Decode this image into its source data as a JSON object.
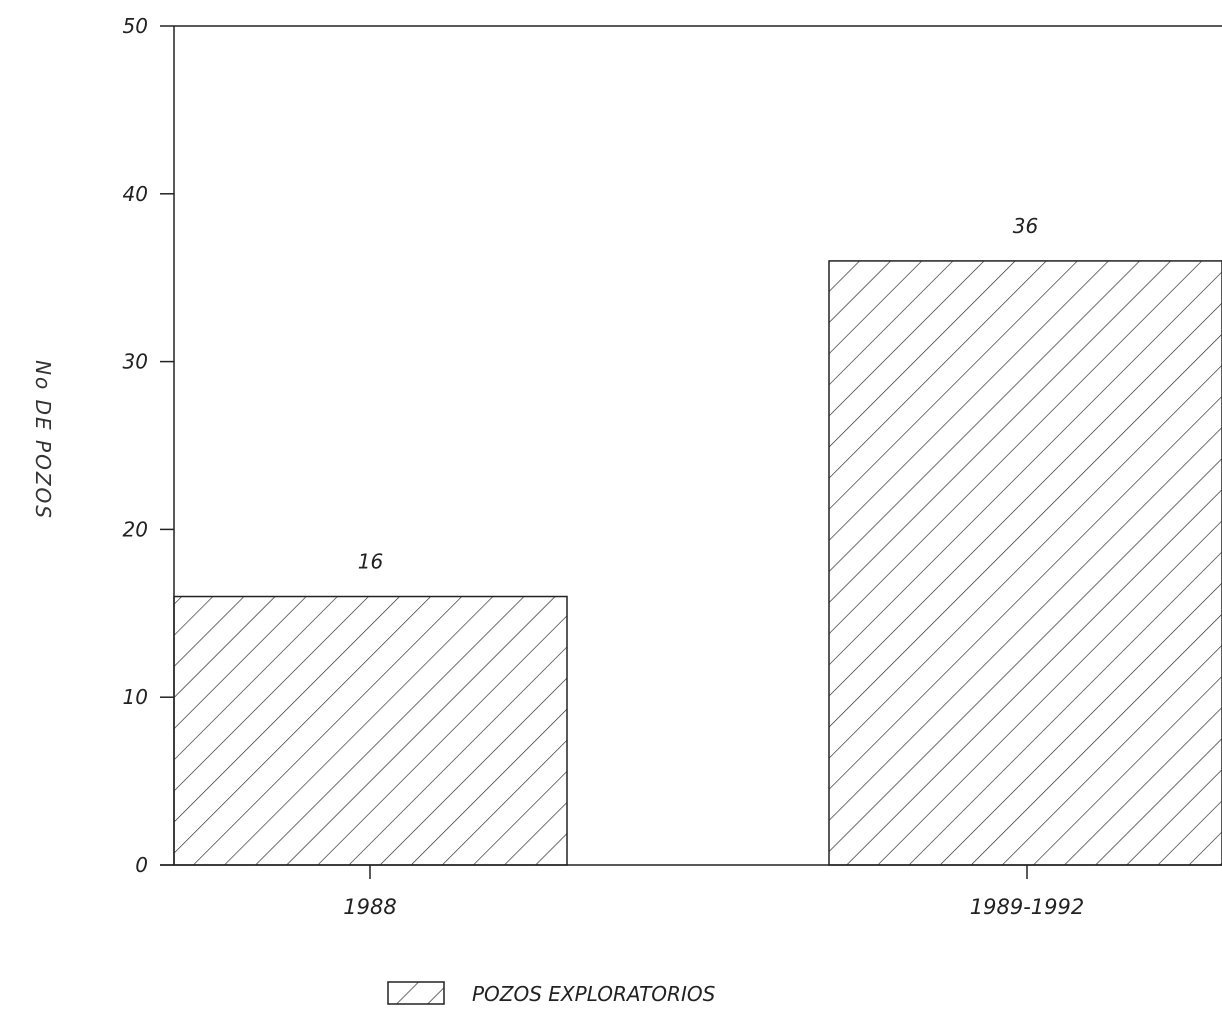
{
  "chart_data": {
    "type": "bar",
    "title": "",
    "xlabel": "",
    "ylabel": "No DE POZOS",
    "categories": [
      "1988",
      "1989-1992"
    ],
    "series": [
      {
        "name": "POZOS EXPLORATORIOS",
        "values": [
          16,
          36
        ],
        "data_labels": [
          "16",
          "36"
        ]
      }
    ],
    "ylim": [
      0,
      50
    ],
    "yticks": [
      0,
      10,
      20,
      30,
      40,
      50
    ],
    "ytick_labels": [
      "0",
      "10",
      "20",
      "30",
      "40",
      "50"
    ],
    "grid": false,
    "legend_position": "bottom-center",
    "fill_pattern": "diagonal-hatch",
    "colors": {
      "ink": "#222222",
      "background": "#ffffff"
    }
  }
}
